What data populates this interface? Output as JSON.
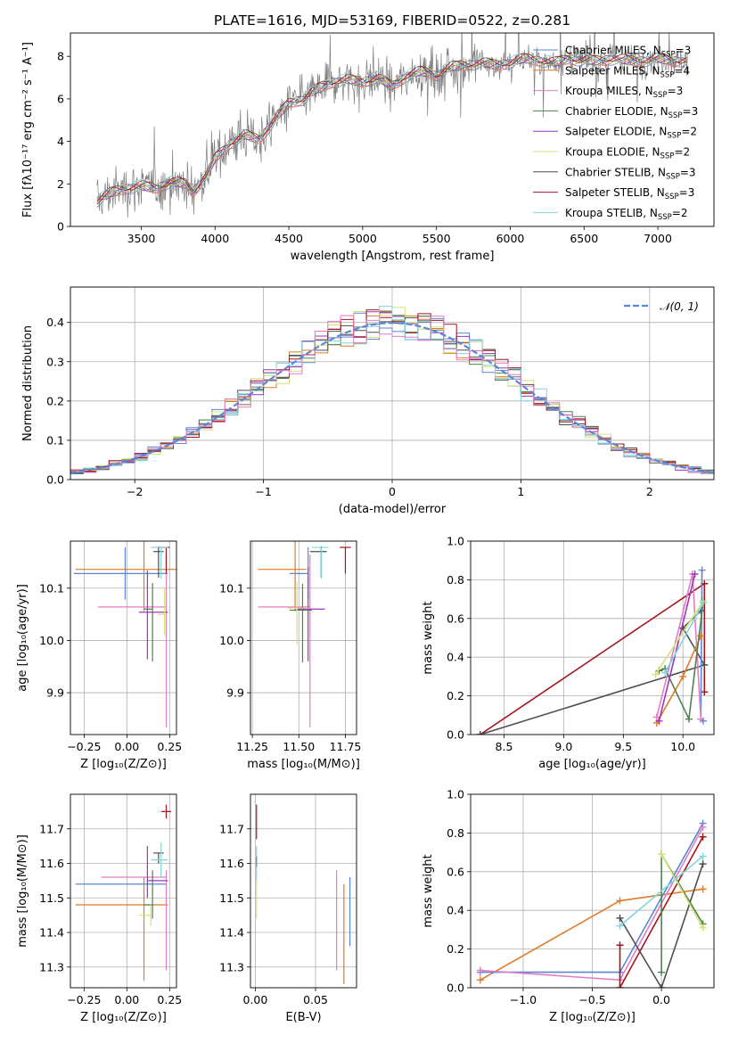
{
  "figure": {
    "title": "PLATE=1616, MJD=53169, FIBERID=0522, z=0.281",
    "colors": {
      "blue": "#5b86d6",
      "orange": "#e07b27",
      "purple": "#9b35bd",
      "olive": "#4e8350",
      "lime": "#d5e374",
      "gray": "#4f4f4f",
      "red": "#a4141c",
      "cyan": "#7fd5dd",
      "pink": "#e37ec1",
      "spec": "#7f7f7f"
    }
  },
  "chart_data": [
    {
      "id": "spectrum",
      "type": "line",
      "xlabel": "wavelength [Angstrom, rest frame]",
      "ylabel": "Flux [fλ10⁻¹⁷ erg cm⁻² s⁻¹ A⁻¹]",
      "xlim": [
        3020,
        7380
      ],
      "ylim": [
        0,
        9.1
      ],
      "xticks": [
        "3500",
        "4000",
        "4500",
        "5000",
        "5500",
        "6000",
        "6500",
        "7000"
      ],
      "yticks": [
        "0",
        "2",
        "4",
        "6",
        "8"
      ],
      "grid": false,
      "legend_placement": "upper right",
      "continuum": {
        "x": [
          3200,
          3300,
          3400,
          3500,
          3600,
          3700,
          3800,
          3850,
          3950,
          4000,
          4100,
          4200,
          4300,
          4400,
          4500,
          4600,
          4700,
          4800,
          4900,
          5000,
          5100,
          5200,
          5300,
          5400,
          5500,
          5600,
          5700,
          5800,
          5900,
          6000,
          6100,
          6200,
          6300,
          6400,
          6500,
          6600,
          6700,
          6800,
          6900,
          7000,
          7100,
          7200
        ],
        "y": [
          1.2,
          1.6,
          1.8,
          1.9,
          1.8,
          2.1,
          2.0,
          1.6,
          2.5,
          3.2,
          3.9,
          4.3,
          4.1,
          5.0,
          5.8,
          6.0,
          6.5,
          6.8,
          6.9,
          6.8,
          7.0,
          6.6,
          7.1,
          7.3,
          7.1,
          7.5,
          7.6,
          7.7,
          7.6,
          7.7,
          7.9,
          7.8,
          7.7,
          7.9,
          7.8,
          7.8,
          7.9,
          7.8,
          7.8,
          7.9,
          7.8,
          7.8
        ]
      },
      "series": [
        {
          "name": "Chabrier MILES, N_SSP=3",
          "color": "#5b86d6",
          "label_main": "Chabrier MILES, N",
          "label_sub": "SSP",
          "label_tail": "=3"
        },
        {
          "name": "Salpeter MILES, N_SSP=4",
          "color": "#e07b27",
          "label_main": "Salpeter MILES, N",
          "label_sub": "SSP",
          "label_tail": "=4"
        },
        {
          "name": "Kroupa MILES, N_SSP=3",
          "color": "#e37ec1",
          "label_main": "Kroupa MILES, N",
          "label_sub": "SSP",
          "label_tail": "=3"
        },
        {
          "name": "Chabrier ELODIE, N_SSP=3",
          "color": "#4e8350",
          "label_main": "Chabrier ELODIE, N",
          "label_sub": "SSP",
          "label_tail": "=3"
        },
        {
          "name": "Salpeter ELODIE, N_SSP=2",
          "color": "#9b35bd",
          "label_main": "Salpeter ELODIE, N",
          "label_sub": "SSP",
          "label_tail": "=2"
        },
        {
          "name": "Kroupa ELODIE, N_SSP=2",
          "color": "#d5e374",
          "label_main": "Kroupa ELODIE, N",
          "label_sub": "SSP",
          "label_tail": "=2"
        },
        {
          "name": "Chabrier STELIB, N_SSP=3",
          "color": "#4f4f4f",
          "label_main": "Chabrier STELIB, N",
          "label_sub": "SSP",
          "label_tail": "=3"
        },
        {
          "name": "Salpeter STELIB, N_SSP=3",
          "color": "#a4141c",
          "label_main": "Salpeter STELIB, N",
          "label_sub": "SSP",
          "label_tail": "=3"
        },
        {
          "name": "Kroupa STELIB, N_SSP=2",
          "color": "#7fd5dd",
          "label_main": "Kroupa STELIB, N",
          "label_sub": "SSP",
          "label_tail": "=2"
        }
      ]
    },
    {
      "id": "residuals",
      "type": "line",
      "xlabel": "(data-model)/error",
      "ylabel": "Normed distribution",
      "xlim": [
        -2.5,
        2.5
      ],
      "ylim": [
        0,
        0.49
      ],
      "xticks": [
        "−2",
        "−1",
        "0",
        "1",
        "2"
      ],
      "yticks": [
        "0.0",
        "0.1",
        "0.2",
        "0.3",
        "0.4"
      ],
      "grid": true,
      "legend_placement": "upper right",
      "legend_label": "𝒩(0, 1)",
      "normal": {
        "mean": 0,
        "sigma": 1,
        "color": "#5b86d6"
      },
      "hist_bins": [
        -2.5,
        2.5,
        50
      ]
    },
    {
      "id": "age-vs-Z",
      "type": "scatter",
      "xlabel": "Z [log₁₀(Z/Z⊙)]",
      "ylabel": "age  [log₁₀(age/yr)]",
      "xlim": [
        -0.33,
        0.29
      ],
      "ylim": [
        9.82,
        10.19
      ],
      "xticks": [
        "−0.25",
        "0.00",
        "0.25"
      ],
      "yticks": [
        "9.9",
        "10.0",
        "10.1"
      ],
      "grid": true,
      "points": [
        {
          "x": -0.01,
          "y": 10.128,
          "xerr": [
            0.3,
            0.25
          ],
          "yerr": [
            0.05,
            0.05
          ],
          "c": "#5b86d6"
        },
        {
          "x": 0.1,
          "y": 10.136,
          "xerr": [
            0.4,
            0.2
          ],
          "yerr": [
            0.08,
            0.06
          ],
          "c": "#e07b27"
        },
        {
          "x": 0.23,
          "y": 10.064,
          "xerr": [
            0.4,
            0.0
          ],
          "yerr": [
            0.23,
            0.1
          ],
          "c": "#e37ec1"
        },
        {
          "x": 0.15,
          "y": 10.06,
          "xerr": [
            0.05,
            0.0
          ],
          "yerr": [
            0.1,
            0.05
          ],
          "c": "#4e8350"
        },
        {
          "x": 0.12,
          "y": 10.054,
          "xerr": [
            0.05,
            0.12
          ],
          "yerr": [
            0.09,
            0.08
          ],
          "c": "#9b35bd"
        },
        {
          "x": 0.22,
          "y": 10.05,
          "xerr": [
            0.04,
            0.0
          ],
          "yerr": [
            0.04,
            0.05
          ],
          "c": "#d5e374"
        },
        {
          "x": 0.185,
          "y": 10.17,
          "xerr": [
            0.03,
            0.03
          ],
          "yerr": [
            0.05,
            0.01
          ],
          "c": "#4f4f4f"
        },
        {
          "x": 0.23,
          "y": 10.178,
          "xerr": [
            0.05,
            0.02
          ],
          "yerr": [
            0.05,
            0.0
          ],
          "c": "#a4141c"
        },
        {
          "x": 0.2,
          "y": 10.178,
          "xerr": [
            0.06,
            0.04
          ],
          "yerr": [
            0.06,
            0.0
          ],
          "c": "#7fd5dd"
        }
      ]
    },
    {
      "id": "age-vs-mass",
      "type": "scatter",
      "xlabel": "mass [log₁₀(M/M⊙)]",
      "ylabel": "",
      "xlim": [
        11.24,
        11.81
      ],
      "ylim": [
        9.82,
        10.19
      ],
      "xticks": [
        "11.25",
        "11.50",
        "11.75"
      ],
      "yticks": [
        "9.9",
        "10.0",
        "10.1"
      ],
      "grid": true,
      "points": [
        {
          "x": 11.55,
          "y": 10.128,
          "xerr": [
            0.1,
            0.0
          ],
          "yerr": [
            0.05,
            0.05
          ],
          "c": "#5b86d6"
        },
        {
          "x": 11.48,
          "y": 10.136,
          "xerr": [
            0.2,
            0.06
          ],
          "yerr": [
            0.08,
            0.06
          ],
          "c": "#e07b27"
        },
        {
          "x": 11.56,
          "y": 10.064,
          "xerr": [
            0.28,
            0.0
          ],
          "yerr": [
            0.23,
            0.1
          ],
          "c": "#e37ec1"
        },
        {
          "x": 11.52,
          "y": 10.058,
          "xerr": [
            0.07,
            0.05
          ],
          "yerr": [
            0.1,
            0.05
          ],
          "c": "#4e8350"
        },
        {
          "x": 11.55,
          "y": 10.06,
          "xerr": [
            0.06,
            0.09
          ],
          "yerr": [
            0.1,
            0.08
          ],
          "c": "#9b35bd"
        },
        {
          "x": 11.49,
          "y": 10.062,
          "xerr": [
            0.05,
            0.07
          ],
          "yerr": [
            0.07,
            0.05
          ],
          "c": "#d5e374"
        },
        {
          "x": 11.62,
          "y": 10.17,
          "xerr": [
            0.06,
            0.03
          ],
          "yerr": [
            0.05,
            0.01
          ],
          "c": "#4f4f4f"
        },
        {
          "x": 11.75,
          "y": 10.178,
          "xerr": [
            0.03,
            0.03
          ],
          "yerr": [
            0.05,
            0.0
          ],
          "c": "#a4141c"
        },
        {
          "x": 11.62,
          "y": 10.178,
          "xerr": [
            0.05,
            0.04
          ],
          "yerr": [
            0.06,
            0.0
          ],
          "c": "#7fd5dd"
        }
      ]
    },
    {
      "id": "weight-vs-age",
      "type": "line",
      "xlabel": "age  [log₁₀(age/yr)]",
      "ylabel": "mass weight",
      "xlim": [
        8.22,
        10.26
      ],
      "ylim": [
        0,
        1.0
      ],
      "xticks": [
        "8.5",
        "9.0",
        "9.5",
        "10.0"
      ],
      "yticks": [
        "0.0",
        "0.2",
        "0.4",
        "0.6",
        "0.8",
        "1.0"
      ],
      "grid": true,
      "series": [
        {
          "c": "#a4141c",
          "x": [
            8.3,
            10.18,
            10.18
          ],
          "y": [
            0.0,
            0.78,
            0.22
          ]
        },
        {
          "c": "#4f4f4f",
          "x": [
            8.3,
            10.18,
            10.0,
            10.15
          ],
          "y": [
            0.0,
            0.36,
            0.55,
            0.64
          ]
        },
        {
          "c": "#5b86d6",
          "x": [
            10.16,
            10.15,
            10.17
          ],
          "y": [
            0.85,
            0.08,
            0.07
          ]
        },
        {
          "c": "#e07b27",
          "x": [
            9.78,
            10.0,
            10.15
          ],
          "y": [
            0.06,
            0.3,
            0.51
          ]
        },
        {
          "c": "#e37ec1",
          "x": [
            9.78,
            10.08,
            10.15
          ],
          "y": [
            0.09,
            0.83,
            0.08
          ]
        },
        {
          "c": "#4e8350",
          "x": [
            9.8,
            9.85,
            10.05,
            10.17
          ],
          "y": [
            0.33,
            0.34,
            0.08,
            0.69
          ]
        },
        {
          "c": "#9b35bd",
          "x": [
            9.8,
            10.1
          ],
          "y": [
            0.07,
            0.83
          ]
        },
        {
          "c": "#d5e374",
          "x": [
            9.77,
            10.17
          ],
          "y": [
            0.31,
            0.69
          ]
        },
        {
          "c": "#7fd5dd",
          "x": [
            9.85,
            10.17
          ],
          "y": [
            0.32,
            0.68
          ]
        }
      ]
    },
    {
      "id": "mass-vs-Z",
      "type": "scatter",
      "xlabel": "Z [log₁₀(Z/Z⊙)]",
      "ylabel": "mass [log₁₀(M/M⊙)]",
      "xlim": [
        -0.33,
        0.29
      ],
      "ylim": [
        11.24,
        11.8
      ],
      "xticks": [
        "−0.25",
        "0.00",
        "0.25"
      ],
      "yticks": [
        "11.3",
        "11.4",
        "11.5",
        "11.6",
        "11.7"
      ],
      "grid": true,
      "points": [
        {
          "x": 0.1,
          "y": 11.54,
          "xerr": [
            0.4,
            0.13
          ],
          "yerr": [
            0.0,
            0.0
          ],
          "c": "#5b86d6"
        },
        {
          "x": 0.1,
          "y": 11.48,
          "xerr": [
            0.4,
            0.14
          ],
          "yerr": [
            0.22,
            0.08
          ],
          "c": "#e07b27"
        },
        {
          "x": 0.23,
          "y": 11.56,
          "xerr": [
            0.38,
            0.0
          ],
          "yerr": [
            0.27,
            0.02
          ],
          "c": "#e37ec1"
        },
        {
          "x": 0.15,
          "y": 11.48,
          "xerr": [
            0.05,
            0.0
          ],
          "yerr": [
            0.04,
            0.1
          ],
          "c": "#4e8350"
        },
        {
          "x": 0.12,
          "y": 11.55,
          "xerr": [
            0.0,
            0.12
          ],
          "yerr": [
            0.05,
            0.1
          ],
          "c": "#9b35bd"
        },
        {
          "x": 0.14,
          "y": 11.45,
          "xerr": [
            0.07,
            0.0
          ],
          "yerr": [
            0.03,
            0.03
          ],
          "c": "#d5e374"
        },
        {
          "x": 0.185,
          "y": 11.63,
          "xerr": [
            0.03,
            0.03
          ],
          "yerr": [
            0.03,
            0.0
          ],
          "c": "#4f4f4f"
        },
        {
          "x": 0.23,
          "y": 11.75,
          "xerr": [
            0.03,
            0.03
          ],
          "yerr": [
            0.02,
            0.02
          ],
          "c": "#a4141c"
        },
        {
          "x": 0.2,
          "y": 11.61,
          "xerr": [
            0.06,
            0.04
          ],
          "yerr": [
            0.05,
            0.05
          ],
          "c": "#7fd5dd"
        }
      ]
    },
    {
      "id": "mass-vs-EBV",
      "type": "scatter",
      "xlabel": "E(B-V)",
      "ylabel": "",
      "xlim": [
        -0.004,
        0.084
      ],
      "ylim": [
        11.24,
        11.8
      ],
      "xticks": [
        "0.00",
        "0.05"
      ],
      "yticks": [
        "11.3",
        "11.4",
        "11.5",
        "11.6",
        "11.7"
      ],
      "grid": true,
      "points": [
        {
          "x": 0.001,
          "y": 11.72,
          "xerr": [
            0,
            0
          ],
          "yerr": [
            0.05,
            0.05
          ],
          "c": "#a4141c"
        },
        {
          "x": 0.001,
          "y": 11.6,
          "xerr": [
            0,
            0
          ],
          "yerr": [
            0.05,
            0.05
          ],
          "c": "#7fd5dd"
        },
        {
          "x": 0.001,
          "y": 11.62,
          "xerr": [
            0,
            0
          ],
          "yerr": [
            0.03,
            0.0
          ],
          "c": "#5b86d6"
        },
        {
          "x": 0.001,
          "y": 11.48,
          "xerr": [
            0,
            0
          ],
          "yerr": [
            0.04,
            0.07
          ],
          "c": "#d5e374"
        },
        {
          "x": 0.0675,
          "y": 11.43,
          "xerr": [
            0,
            0
          ],
          "yerr": [
            0.14,
            0.15
          ],
          "c": "#e37ec1"
        },
        {
          "x": 0.0735,
          "y": 11.4,
          "xerr": [
            0,
            0
          ],
          "yerr": [
            0.15,
            0.14
          ],
          "c": "#e07b27"
        },
        {
          "x": 0.0785,
          "y": 11.46,
          "xerr": [
            0,
            0
          ],
          "yerr": [
            0.1,
            0.1
          ],
          "c": "#5b86d6"
        }
      ]
    },
    {
      "id": "weight-vs-Z",
      "type": "line",
      "xlabel": "Z [log₁₀(Z/Z⊙)]",
      "ylabel": "mass weight",
      "xlim": [
        -1.38,
        0.38
      ],
      "ylim": [
        0,
        1.0
      ],
      "xticks": [
        "−1.0",
        "−0.5",
        "0.0"
      ],
      "yticks": [
        "0.0",
        "0.2",
        "0.4",
        "0.6",
        "0.8",
        "1.0"
      ],
      "grid": true,
      "series": [
        {
          "c": "#e07b27",
          "x": [
            -1.31,
            -0.3,
            0.3
          ],
          "y": [
            0.04,
            0.45,
            0.51
          ]
        },
        {
          "c": "#5b86d6",
          "x": [
            -1.31,
            -0.3,
            0.3
          ],
          "y": [
            0.08,
            0.08,
            0.85
          ]
        },
        {
          "c": "#e37ec1",
          "x": [
            -1.31,
            -0.3,
            0.3
          ],
          "y": [
            0.09,
            0.04,
            0.83
          ]
        },
        {
          "c": "#a4141c",
          "x": [
            -0.3,
            -0.3,
            0.3
          ],
          "y": [
            0.22,
            0.0,
            0.78
          ]
        },
        {
          "c": "#4f4f4f",
          "x": [
            -0.3,
            0.0,
            0.3
          ],
          "y": [
            0.36,
            0.0,
            0.64
          ]
        },
        {
          "c": "#4e8350",
          "x": [
            0.0,
            0.0,
            0.3
          ],
          "y": [
            0.08,
            0.69,
            0.33
          ]
        },
        {
          "c": "#d5e374",
          "x": [
            0.0,
            0.3
          ],
          "y": [
            0.69,
            0.31
          ]
        },
        {
          "c": "#7fd5dd",
          "x": [
            -0.3,
            0.3
          ],
          "y": [
            0.32,
            0.68
          ]
        }
      ]
    }
  ]
}
